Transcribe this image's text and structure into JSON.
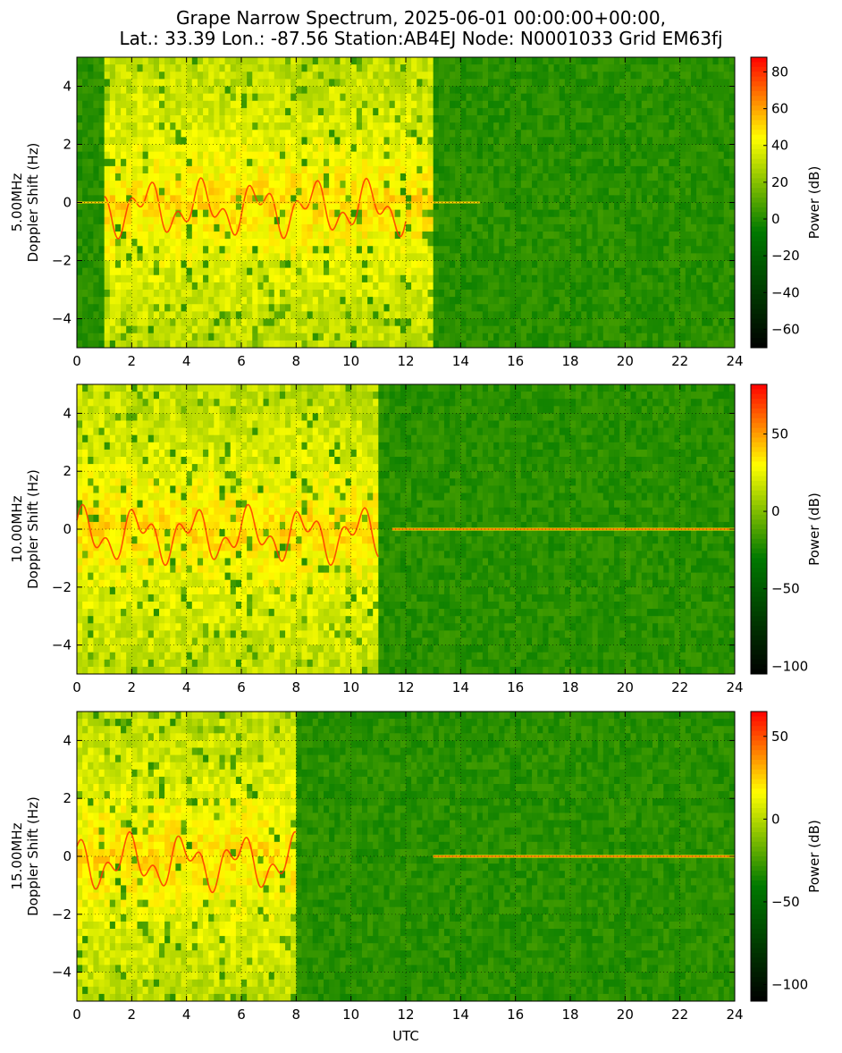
{
  "figure": {
    "title_line1": "Grape Narrow Spectrum, 2025-06-01 00:00:00+00:00,",
    "title_line2": "Lat.: 33.39 Lon.: -87.56 Station:AB4EJ Node: N0001033 Grid EM63fj",
    "xlabel": "UTC"
  },
  "chart_data": [
    {
      "type": "heatmap",
      "ylabel_line1": "5.00MHz",
      "ylabel_line2": "Doppler Shift (Hz)",
      "xlim": [
        0,
        24
      ],
      "ylim": [
        -5,
        5
      ],
      "xticks": [
        0,
        2,
        4,
        6,
        8,
        10,
        12,
        14,
        16,
        18,
        20,
        22,
        24
      ],
      "yticks": [
        -4,
        -2,
        0,
        2,
        4
      ],
      "grid": true,
      "colorbar": {
        "label": "Power (dB)",
        "range": [
          -70,
          88
        ],
        "ticks": [
          -60,
          -40,
          -20,
          0,
          20,
          40,
          60,
          80
        ],
        "colors": [
          "#000000",
          "#007a00",
          "#ffff00",
          "#ff0000"
        ]
      },
      "active_hours": [
        1,
        13
      ],
      "carrier_end_hour": 14.7,
      "peak_level": 1.0
    },
    {
      "type": "heatmap",
      "ylabel_line1": "10.00MHz",
      "ylabel_line2": "Doppler Shift (Hz)",
      "xlim": [
        0,
        24
      ],
      "ylim": [
        -5,
        5
      ],
      "xticks": [
        0,
        2,
        4,
        6,
        8,
        10,
        12,
        14,
        16,
        18,
        20,
        22,
        24
      ],
      "yticks": [
        -4,
        -2,
        0,
        2,
        4
      ],
      "grid": true,
      "colorbar": {
        "label": "Power (dB)",
        "range": [
          -105,
          82
        ],
        "ticks": [
          -100,
          -50,
          0,
          50
        ],
        "colors": [
          "#000000",
          "#007a00",
          "#ffff00",
          "#ff0000"
        ]
      },
      "active_hours": [
        0,
        11
      ],
      "carrier_start_hour": 11.5,
      "peak_level": 1.0
    },
    {
      "type": "heatmap",
      "ylabel_line1": "15.00MHz",
      "ylabel_line2": "Doppler Shift (Hz)",
      "xlim": [
        0,
        24
      ],
      "ylim": [
        -5,
        5
      ],
      "xticks": [
        0,
        2,
        4,
        6,
        8,
        10,
        12,
        14,
        16,
        18,
        20,
        22,
        24
      ],
      "yticks": [
        -4,
        -2,
        0,
        2,
        4
      ],
      "grid": true,
      "colorbar": {
        "label": "Power (dB)",
        "range": [
          -110,
          65
        ],
        "ticks": [
          -100,
          -50,
          0,
          50
        ],
        "colors": [
          "#000000",
          "#007a00",
          "#ffff00",
          "#ff0000"
        ]
      },
      "active_hours": [
        0,
        8
      ],
      "carrier_start_hour": 13.0,
      "peak_level": 1.0
    }
  ]
}
